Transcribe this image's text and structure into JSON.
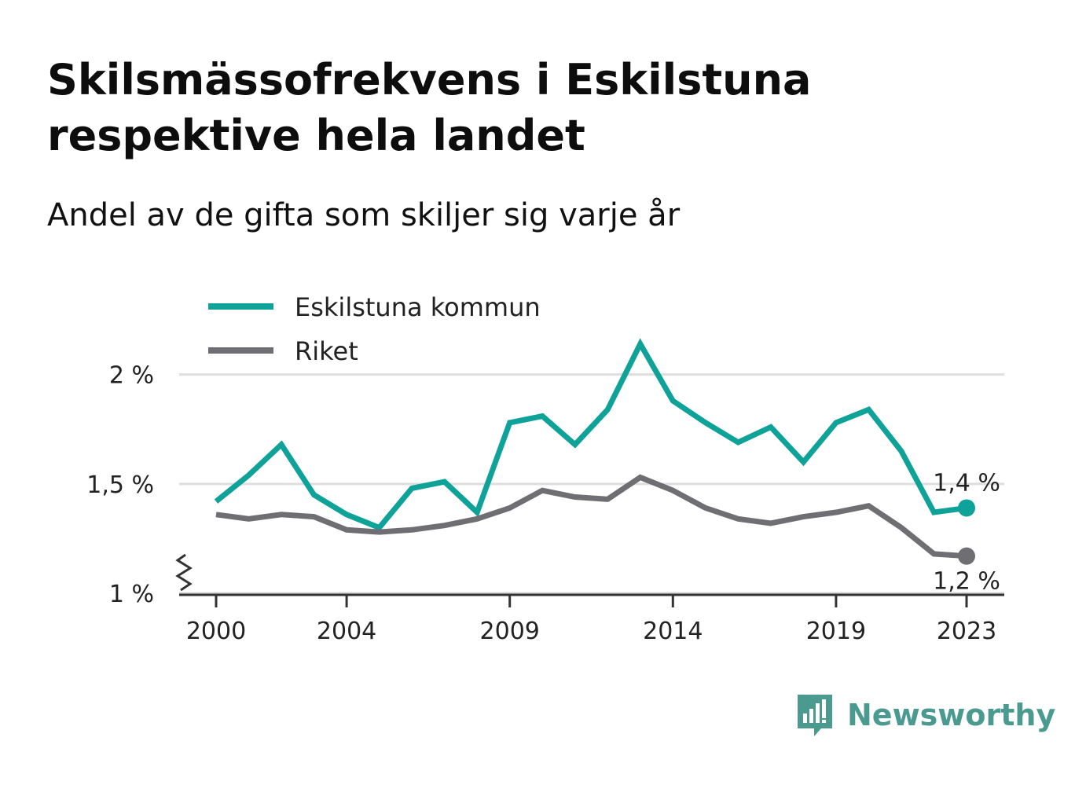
{
  "header": {
    "title": "Skilsmässofrekvens i Eskilstuna respektive hela landet",
    "subtitle": "Andel av de gifta som skiljer sig varje år"
  },
  "brand": {
    "name": "Newsworthy",
    "icon": "newsworthy-logo-icon",
    "color": "#4a9a8f"
  },
  "chart_data": {
    "type": "line",
    "x": [
      2000,
      2001,
      2002,
      2003,
      2004,
      2005,
      2006,
      2007,
      2008,
      2009,
      2010,
      2011,
      2012,
      2013,
      2014,
      2015,
      2016,
      2017,
      2018,
      2019,
      2020,
      2021,
      2022,
      2023
    ],
    "x_ticks": [
      2000,
      2004,
      2009,
      2014,
      2019,
      2023
    ],
    "x_tick_labels": [
      "2000",
      "2004",
      "2009",
      "2014",
      "2019",
      "2023"
    ],
    "ylim": [
      1.0,
      2.2
    ],
    "y_ticks": [
      1.0,
      1.5,
      2.0
    ],
    "y_tick_labels": [
      "1 %",
      "1,5 %",
      "2 %"
    ],
    "y_axis_break": true,
    "grid": true,
    "legend_position": "top-left",
    "series": [
      {
        "name": "Eskilstuna kommun",
        "color": "#0fa299",
        "values": [
          1.42,
          1.54,
          1.68,
          1.45,
          1.36,
          1.3,
          1.48,
          1.51,
          1.37,
          1.78,
          1.81,
          1.68,
          1.84,
          2.14,
          1.88,
          1.78,
          1.69,
          1.76,
          1.6,
          1.78,
          1.84,
          1.65,
          1.37,
          1.39
        ],
        "end_label": "1,4 %"
      },
      {
        "name": "Riket",
        "color": "#6f6e73",
        "values": [
          1.36,
          1.34,
          1.36,
          1.35,
          1.29,
          1.28,
          1.29,
          1.31,
          1.34,
          1.39,
          1.47,
          1.44,
          1.43,
          1.53,
          1.47,
          1.39,
          1.34,
          1.32,
          1.35,
          1.37,
          1.4,
          1.3,
          1.18,
          1.17
        ],
        "end_label": "1,2 %"
      }
    ]
  }
}
